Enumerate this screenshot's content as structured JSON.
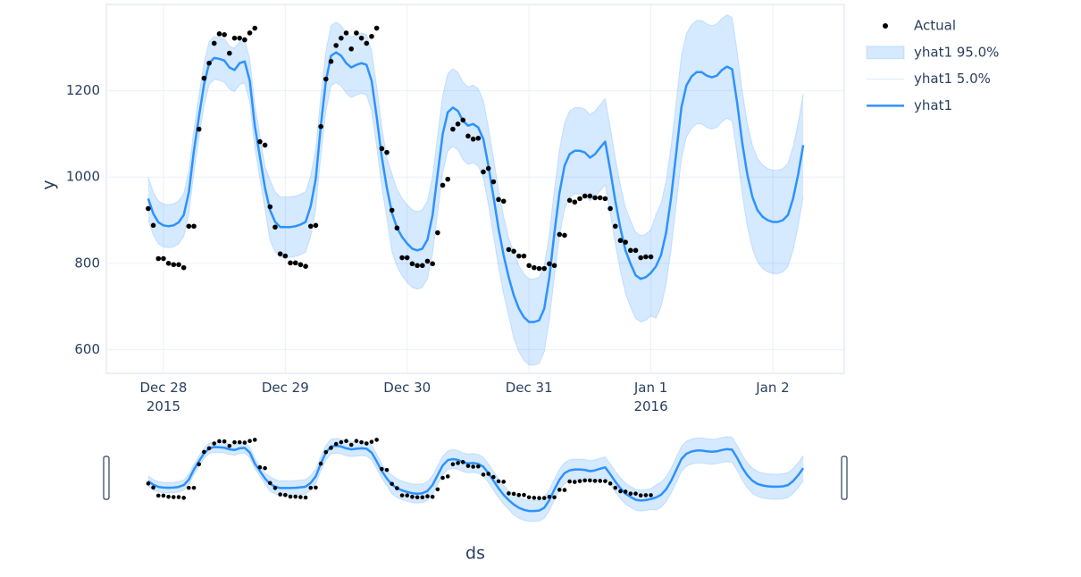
{
  "chart_data": {
    "type": "line",
    "xlabel": "ds",
    "ylabel": "y",
    "grid": true,
    "legend": "right",
    "rangeslider": true,
    "xlim": [
      "2015-12-27 12:45",
      "2016-01-02 14:05"
    ],
    "xticks": [
      {
        "value": "2015-12-28",
        "label": "Dec 28\n2015"
      },
      {
        "value": "2015-12-29",
        "label": "Dec 29"
      },
      {
        "value": "2015-12-30",
        "label": "Dec 30"
      },
      {
        "value": "2015-12-31",
        "label": "Dec 31"
      },
      {
        "value": "2016-01-01",
        "label": "Jan 1\n2016"
      },
      {
        "value": "2016-01-02",
        "label": "Jan 2"
      }
    ],
    "ylim": [
      545,
      1400
    ],
    "yticks": [
      600,
      800,
      1000,
      1200
    ],
    "x": [
      "2015-12-27 21:00",
      "2015-12-27 22:00",
      "2015-12-27 23:00",
      "2015-12-28 00:00",
      "2015-12-28 01:00",
      "2015-12-28 02:00",
      "2015-12-28 03:00",
      "2015-12-28 04:00",
      "2015-12-28 05:00",
      "2015-12-28 06:00",
      "2015-12-28 07:00",
      "2015-12-28 08:00",
      "2015-12-28 09:00",
      "2015-12-28 10:00",
      "2015-12-28 11:00",
      "2015-12-28 12:00",
      "2015-12-28 13:00",
      "2015-12-28 14:00",
      "2015-12-28 15:00",
      "2015-12-28 16:00",
      "2015-12-28 17:00",
      "2015-12-28 18:00",
      "2015-12-28 19:00",
      "2015-12-28 20:00",
      "2015-12-28 21:00",
      "2015-12-28 22:00",
      "2015-12-28 23:00",
      "2015-12-29 00:00",
      "2015-12-29 01:00",
      "2015-12-29 02:00",
      "2015-12-29 03:00",
      "2015-12-29 04:00",
      "2015-12-29 05:00",
      "2015-12-29 06:00",
      "2015-12-29 07:00",
      "2015-12-29 08:00",
      "2015-12-29 09:00",
      "2015-12-29 10:00",
      "2015-12-29 11:00",
      "2015-12-29 12:00",
      "2015-12-29 13:00",
      "2015-12-29 14:00",
      "2015-12-29 15:00",
      "2015-12-29 16:00",
      "2015-12-29 17:00",
      "2015-12-29 18:00",
      "2015-12-29 19:00",
      "2015-12-29 20:00",
      "2015-12-29 21:00",
      "2015-12-29 22:00",
      "2015-12-29 23:00",
      "2015-12-30 00:00",
      "2015-12-30 01:00",
      "2015-12-30 02:00",
      "2015-12-30 03:00",
      "2015-12-30 04:00",
      "2015-12-30 05:00",
      "2015-12-30 06:00",
      "2015-12-30 07:00",
      "2015-12-30 08:00",
      "2015-12-30 09:00",
      "2015-12-30 10:00",
      "2015-12-30 11:00",
      "2015-12-30 12:00",
      "2015-12-30 13:00",
      "2015-12-30 14:00",
      "2015-12-30 15:00",
      "2015-12-30 16:00",
      "2015-12-30 17:00",
      "2015-12-30 18:00",
      "2015-12-30 19:00",
      "2015-12-30 20:00",
      "2015-12-30 21:00",
      "2015-12-30 22:00",
      "2015-12-30 23:00",
      "2015-12-31 00:00",
      "2015-12-31 01:00",
      "2015-12-31 02:00",
      "2015-12-31 03:00",
      "2015-12-31 04:00",
      "2015-12-31 05:00",
      "2015-12-31 06:00",
      "2015-12-31 07:00",
      "2015-12-31 08:00",
      "2015-12-31 09:00",
      "2015-12-31 10:00",
      "2015-12-31 11:00",
      "2015-12-31 12:00",
      "2015-12-31 13:00",
      "2015-12-31 14:00",
      "2015-12-31 15:00",
      "2015-12-31 16:00",
      "2015-12-31 17:00",
      "2015-12-31 18:00",
      "2015-12-31 19:00",
      "2015-12-31 20:00",
      "2015-12-31 21:00",
      "2015-12-31 22:00",
      "2015-12-31 23:00",
      "2016-01-01 00:00",
      "2016-01-01 01:00",
      "2016-01-01 02:00",
      "2016-01-01 03:00",
      "2016-01-01 04:00",
      "2016-01-01 05:00",
      "2016-01-01 06:00",
      "2016-01-01 07:00",
      "2016-01-01 08:00",
      "2016-01-01 09:00",
      "2016-01-01 10:00",
      "2016-01-01 11:00",
      "2016-01-01 12:00",
      "2016-01-01 13:00",
      "2016-01-01 14:00",
      "2016-01-01 15:00",
      "2016-01-01 16:00",
      "2016-01-01 17:00",
      "2016-01-01 18:00",
      "2016-01-01 19:00",
      "2016-01-01 20:00",
      "2016-01-01 21:00",
      "2016-01-01 22:00",
      "2016-01-01 23:00",
      "2016-01-02 00:00",
      "2016-01-02 01:00",
      "2016-01-02 02:00",
      "2016-01-02 03:00",
      "2016-01-02 04:00",
      "2016-01-02 05:00",
      "2016-01-02 06:00"
    ],
    "series": [
      {
        "name": "Actual",
        "mode": "markers",
        "color": "#000000",
        "values": [
          927,
          888,
          811,
          811,
          800,
          797,
          797,
          790,
          886,
          886,
          1111,
          1229,
          1264,
          1310,
          1332,
          1330,
          1287,
          1322,
          1322,
          1318,
          1334,
          1345,
          1082,
          1074,
          931,
          884,
          822,
          817,
          801,
          801,
          797,
          793,
          886,
          888,
          1117,
          1227,
          1268,
          1305,
          1322,
          1334,
          1297,
          1334,
          1322,
          1310,
          1326,
          1345,
          1066,
          1057,
          923,
          882,
          813,
          813,
          799,
          795,
          795,
          805,
          799,
          871,
          981,
          995,
          1111,
          1123,
          1132,
          1095,
          1088,
          1090,
          1012,
          1020,
          989,
          948,
          944,
          832,
          828,
          817,
          817,
          795,
          790,
          788,
          788,
          799,
          795,
          867,
          865,
          946,
          942,
          950,
          956,
          956,
          952,
          952,
          950,
          927,
          886,
          853,
          849,
          830,
          830,
          813,
          815,
          815,
          null,
          null,
          null,
          null,
          null,
          null,
          null,
          null,
          null,
          null,
          null,
          null,
          null,
          null,
          null,
          null,
          null,
          null,
          null,
          null,
          null,
          null,
          null,
          null,
          null,
          null,
          null,
          null,
          null,
          null
        ]
      },
      {
        "name": "yhat1 95.0%",
        "mode": "lines",
        "fill": true,
        "color": "rgba(45,146,255,0.2)",
        "values": [
          1000,
          965,
          945,
          938,
          936,
          938,
          945,
          962,
          1015,
          1110,
          1190,
          1265,
          1314,
          1326,
          1324,
          1320,
          1304,
          1298,
          1314,
          1318,
          1273,
          1169,
          1097,
          1025,
          993,
          966,
          954,
          954,
          954,
          956,
          960,
          966,
          1003,
          1065,
          1189,
          1293,
          1351,
          1359,
          1351,
          1334,
          1324,
          1330,
          1334,
          1330,
          1293,
          1210,
          1117,
          1045,
          1007,
          972,
          951,
          936,
          924,
          920,
          924,
          945,
          1002,
          1096,
          1189,
          1240,
          1251,
          1243,
          1220,
          1209,
          1213,
          1205,
          1178,
          1116,
          1044,
          971,
          909,
          858,
          826,
          795,
          775,
          764,
          764,
          768,
          795,
          868,
          971,
          1064,
          1126,
          1153,
          1161,
          1161,
          1157,
          1145,
          1153,
          1168,
          1182,
          1116,
          1044,
          981,
          930,
          899,
          872,
          864,
          868,
          878,
          913,
          939,
          991,
          1074,
          1177,
          1281,
          1332,
          1353,
          1363,
          1363,
          1355,
          1351,
          1355,
          1368,
          1376,
          1370,
          1291,
          1198,
          1126,
          1074,
          1043,
          1028,
          1020,
          1016,
          1016,
          1020,
          1032,
          1070,
          1126,
          1194
        ]
      },
      {
        "name": "yhat1 5.0%",
        "mode": "lines",
        "color": "rgba(45,146,255,0.2)",
        "values": [
          900,
          865,
          845,
          838,
          836,
          838,
          845,
          862,
          915,
          1010,
          1090,
          1165,
          1214,
          1226,
          1224,
          1220,
          1204,
          1198,
          1214,
          1218,
          1173,
          1069,
          997,
          925,
          853,
          826,
          814,
          814,
          814,
          816,
          820,
          826,
          863,
          925,
          1049,
          1153,
          1211,
          1219,
          1211,
          1194,
          1184,
          1190,
          1194,
          1190,
          1153,
          1070,
          977,
          905,
          827,
          792,
          771,
          756,
          744,
          740,
          744,
          765,
          822,
          916,
          1009,
          1060,
          1071,
          1063,
          1040,
          1029,
          1033,
          1025,
          998,
          936,
          864,
          791,
          729,
          678,
          626,
          595,
          575,
          564,
          564,
          568,
          595,
          668,
          771,
          864,
          926,
          953,
          961,
          961,
          957,
          945,
          953,
          968,
          982,
          916,
          844,
          781,
          730,
          699,
          672,
          664,
          668,
          678,
          673,
          699,
          751,
          834,
          937,
          1041,
          1092,
          1113,
          1123,
          1123,
          1115,
          1111,
          1115,
          1128,
          1136,
          1130,
          1051,
          958,
          886,
          834,
          803,
          788,
          780,
          776,
          776,
          780,
          792,
          830,
          886,
          954
        ]
      },
      {
        "name": "yhat1",
        "mode": "lines",
        "color": "#2d92ff",
        "values": [
          950,
          915,
          895,
          888,
          886,
          888,
          895,
          912,
          965,
          1060,
          1140,
          1215,
          1264,
          1276,
          1274,
          1270,
          1254,
          1248,
          1264,
          1268,
          1223,
          1119,
          1047,
          975,
          923,
          896,
          884,
          884,
          884,
          886,
          890,
          896,
          933,
          995,
          1119,
          1223,
          1281,
          1289,
          1281,
          1264,
          1254,
          1260,
          1264,
          1260,
          1223,
          1140,
          1047,
          975,
          917,
          882,
          861,
          846,
          834,
          830,
          834,
          855,
          912,
          1006,
          1099,
          1150,
          1161,
          1153,
          1130,
          1119,
          1123,
          1115,
          1088,
          1026,
          954,
          881,
          819,
          768,
          726,
          695,
          675,
          664,
          664,
          668,
          695,
          768,
          871,
          964,
          1026,
          1053,
          1061,
          1061,
          1057,
          1045,
          1053,
          1068,
          1082,
          1016,
          944,
          881,
          830,
          799,
          772,
          764,
          768,
          778,
          793,
          819,
          871,
          954,
          1057,
          1161,
          1212,
          1233,
          1243,
          1243,
          1235,
          1231,
          1235,
          1248,
          1256,
          1250,
          1171,
          1078,
          1006,
          954,
          923,
          908,
          900,
          896,
          896,
          900,
          912,
          950,
          1006,
          1074
        ]
      }
    ]
  }
}
